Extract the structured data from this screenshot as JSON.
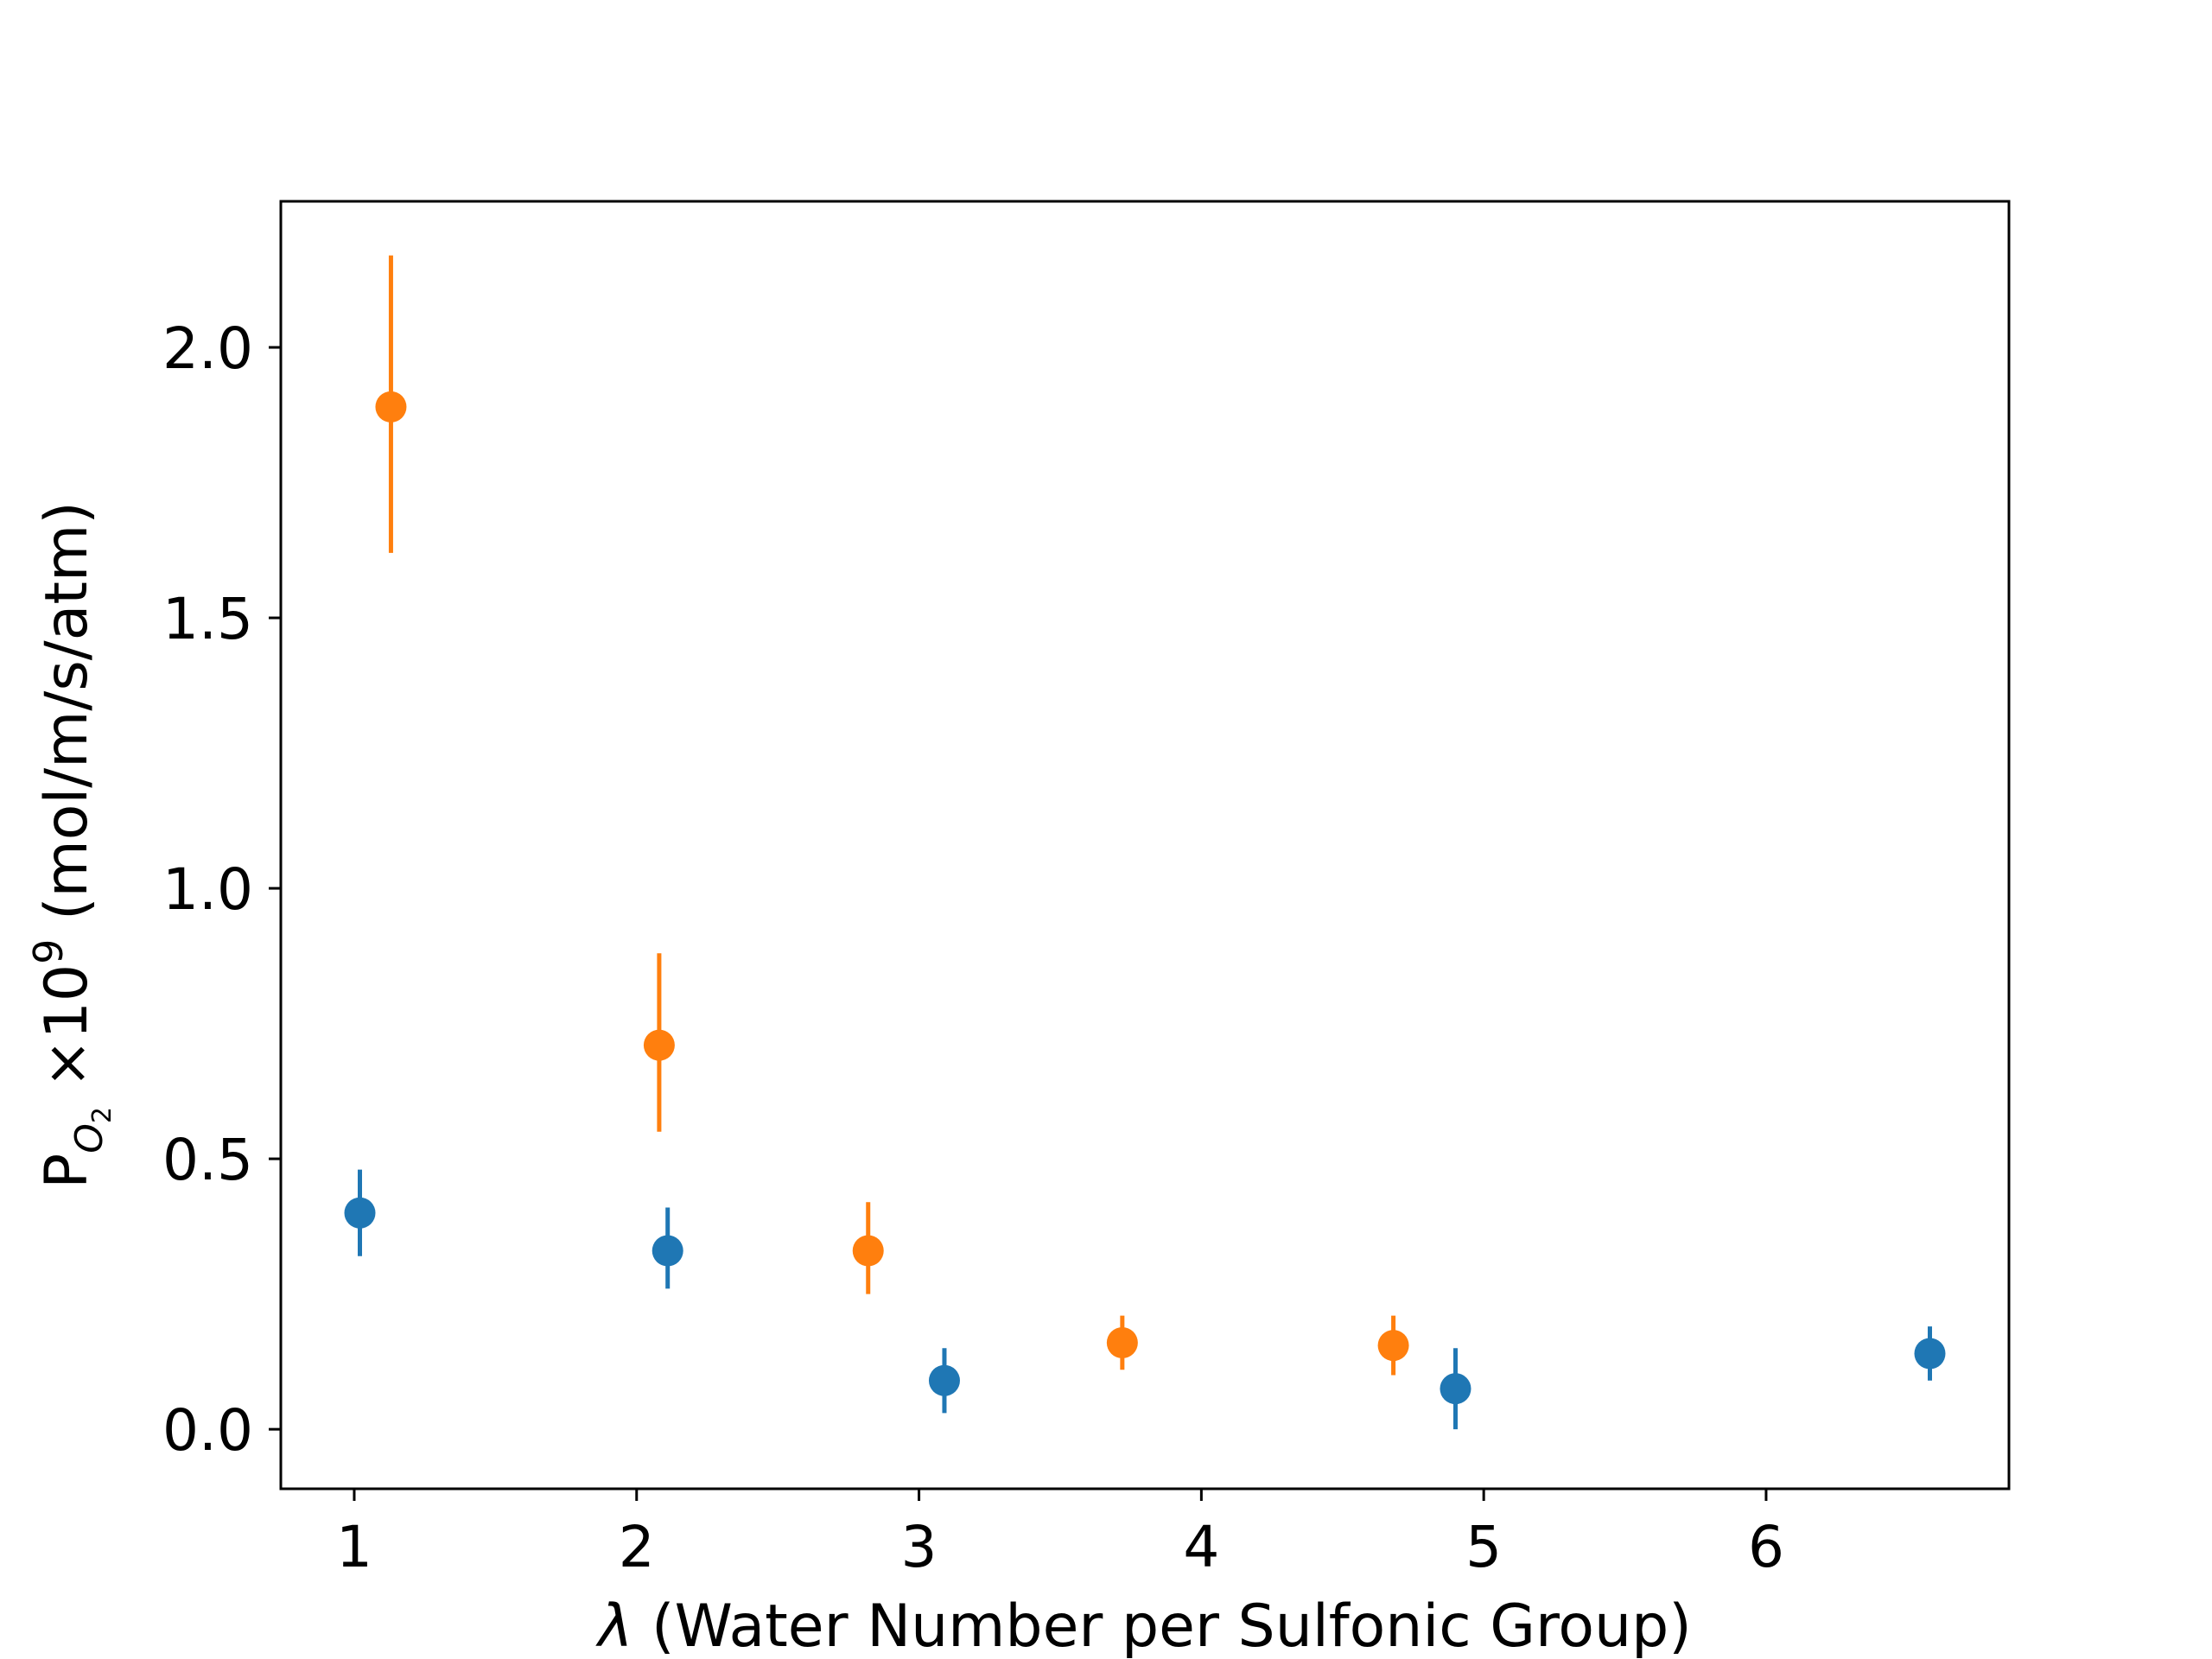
{
  "chart_data": {
    "type": "scatter",
    "title": "",
    "xlabel": "λ (Water Number per Sulfonic Group)",
    "xlabel_symbol": "λ",
    "xlabel_text": " (Water Number per Sulfonic Group)",
    "ylabel": "P_O2 ×10^9 (mol/m/s/atm)",
    "ylabel_parts": {
      "base": "P",
      "subscript_base": "O",
      "subscript_sub": "2",
      "multiplier": " ×10",
      "exponent": "9",
      "unit": " (mol/m/s/atm)"
    },
    "xlim": [
      0.74,
      6.86
    ],
    "ylim": [
      -0.11,
      2.27
    ],
    "xticks": [
      1,
      2,
      3,
      4,
      5,
      6
    ],
    "xtick_labels": [
      "1",
      "2",
      "3",
      "4",
      "5",
      "6"
    ],
    "yticks": [
      0.0,
      0.5,
      1.0,
      1.5,
      2.0
    ],
    "ytick_labels": [
      "0.0",
      "0.5",
      "1.0",
      "1.5",
      "2.0"
    ],
    "grid": false,
    "legend": "none",
    "series": [
      {
        "color": "#1f77b4",
        "points": [
          {
            "x": 1.02,
            "y": 0.4,
            "yerr_low": 0.32,
            "yerr_high": 0.48
          },
          {
            "x": 2.11,
            "y": 0.33,
            "yerr_low": 0.26,
            "yerr_high": 0.41
          },
          {
            "x": 3.09,
            "y": 0.09,
            "yerr_low": 0.03,
            "yerr_high": 0.15
          },
          {
            "x": 4.9,
            "y": 0.075,
            "yerr_low": 0.0,
            "yerr_high": 0.15
          },
          {
            "x": 6.58,
            "y": 0.14,
            "yerr_low": 0.09,
            "yerr_high": 0.19
          }
        ]
      },
      {
        "color": "#ff7f0e",
        "points": [
          {
            "x": 1.13,
            "y": 1.89,
            "yerr_low": 1.62,
            "yerr_high": 2.17
          },
          {
            "x": 2.08,
            "y": 0.71,
            "yerr_low": 0.55,
            "yerr_high": 0.88
          },
          {
            "x": 2.82,
            "y": 0.33,
            "yerr_low": 0.25,
            "yerr_high": 0.42
          },
          {
            "x": 3.72,
            "y": 0.16,
            "yerr_low": 0.11,
            "yerr_high": 0.21
          },
          {
            "x": 4.68,
            "y": 0.155,
            "yerr_low": 0.1,
            "yerr_high": 0.21
          }
        ]
      }
    ]
  }
}
